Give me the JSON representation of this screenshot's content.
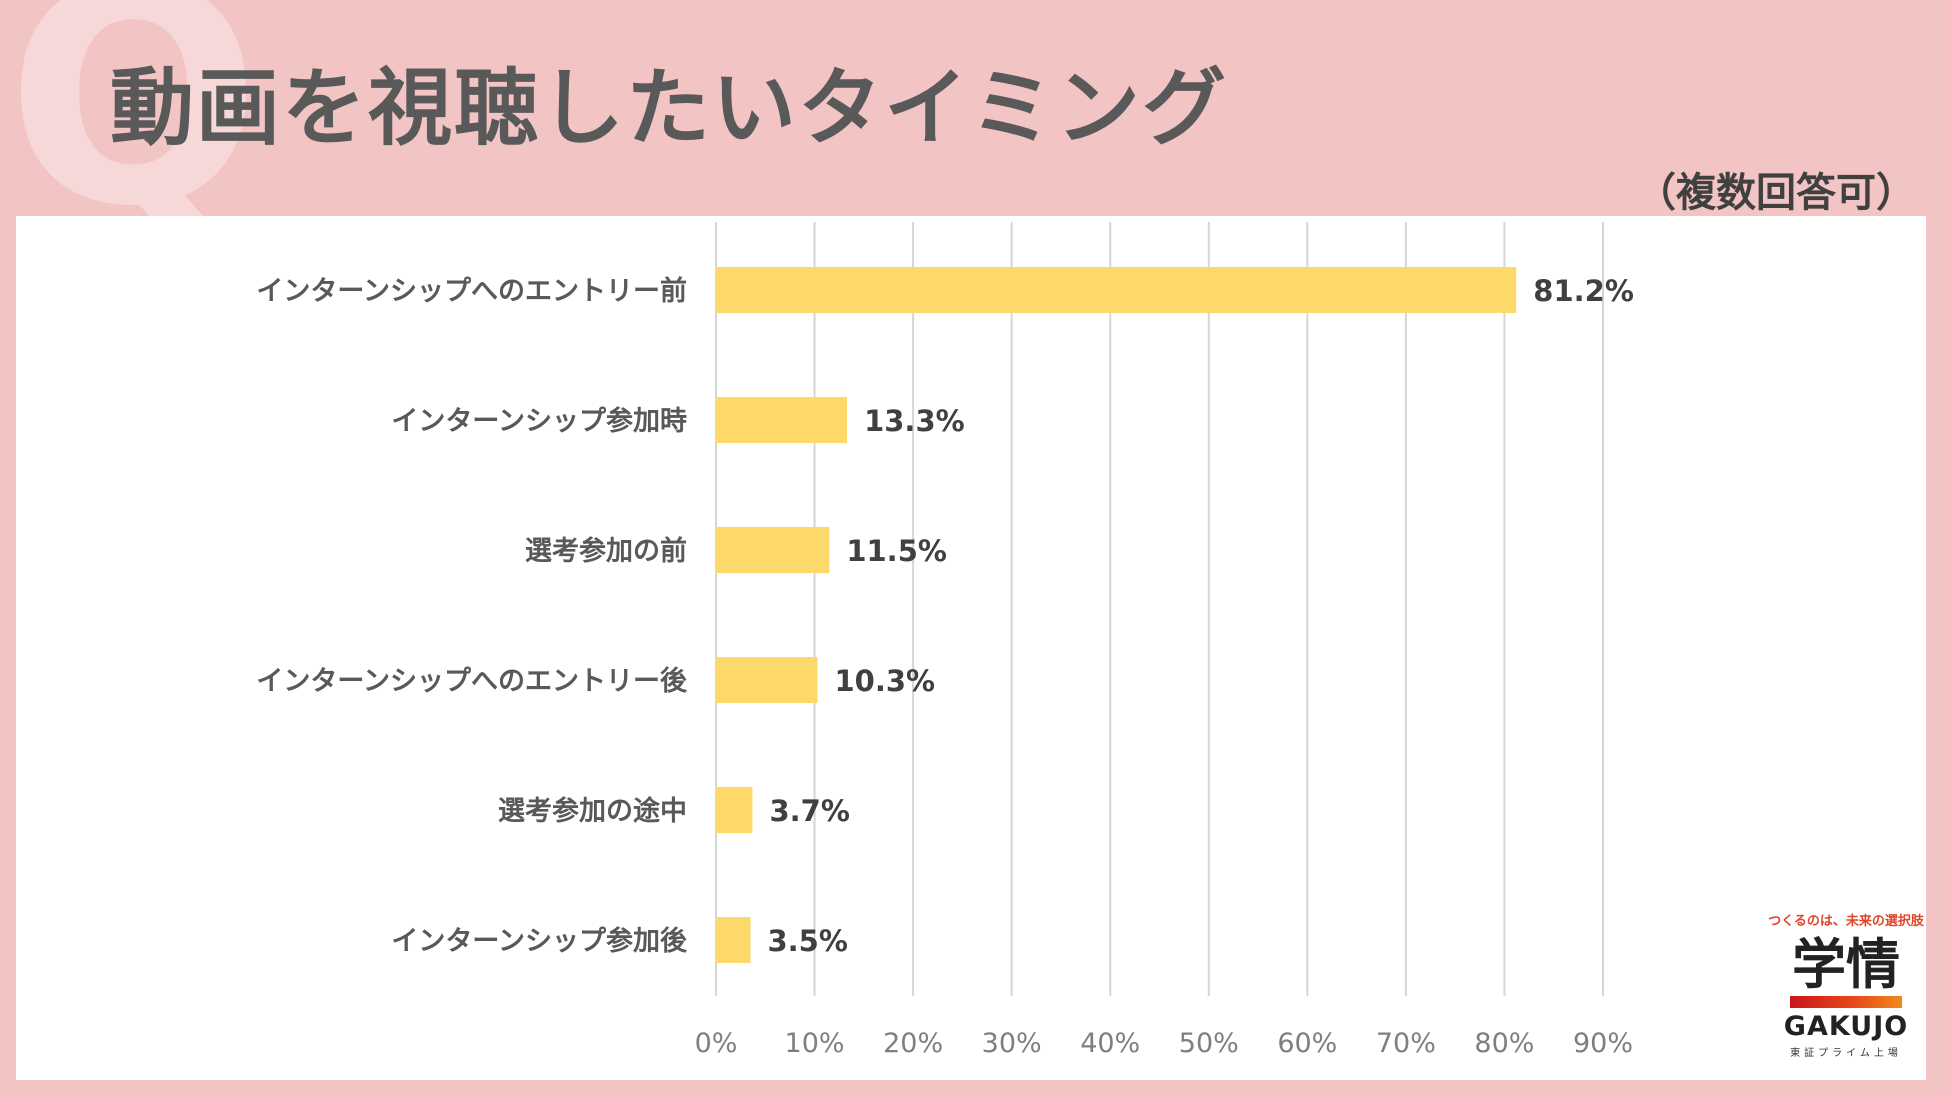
{
  "title": "動画を視聴したいタイミング",
  "watermark": "Q",
  "note": "（複数回答可）",
  "colors": {
    "bar": "#fdd96b",
    "grid": "#d6d6d6",
    "label": "#595959",
    "value": "#404040"
  },
  "logo": {
    "tagline": "つくるのは、未来の選択肢",
    "name_kanji": "学情",
    "name_roman": "GAKUJO",
    "subtitle": "東証プライム上場"
  },
  "chart_data": {
    "type": "bar",
    "orientation": "horizontal",
    "categories": [
      "インターンシップへのエントリー前",
      "インターンシップ参加時",
      "選考参加の前",
      "インターンシップへのエントリー後",
      "選考参加の途中",
      "インターンシップ参加後"
    ],
    "values": [
      81.2,
      13.3,
      11.5,
      10.3,
      3.7,
      3.5
    ],
    "value_labels": [
      "81.2%",
      "13.3%",
      "11.5%",
      "10.3%",
      "3.7%",
      "3.5%"
    ],
    "xlim": [
      0,
      90
    ],
    "xticks": [
      0,
      10,
      20,
      30,
      40,
      50,
      60,
      70,
      80,
      90
    ],
    "xtick_labels": [
      "0%",
      "10%",
      "20%",
      "30%",
      "40%",
      "50%",
      "60%",
      "70%",
      "80%",
      "90%"
    ],
    "grid": true,
    "legend": "none"
  }
}
